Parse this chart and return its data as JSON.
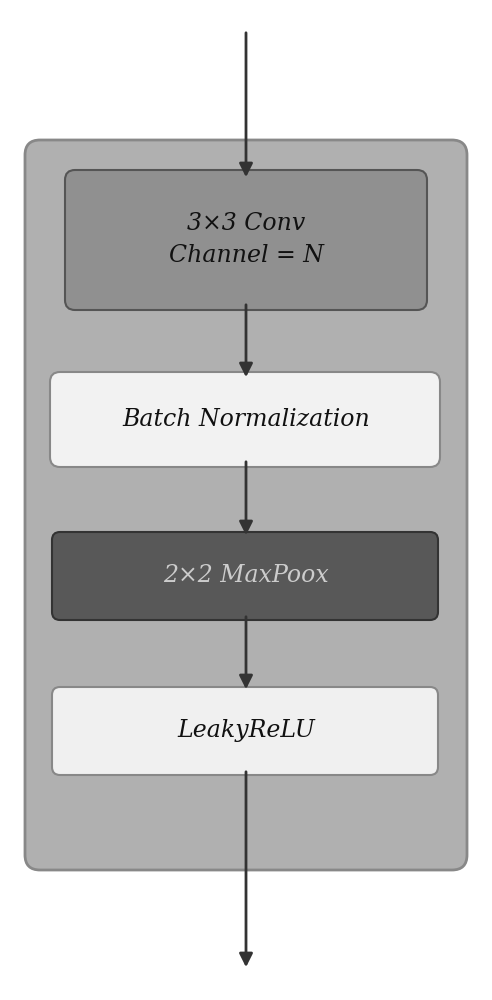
{
  "bg_color": "#ffffff",
  "outer_box_color": "#b0b0b0",
  "outer_box_edge_color": "#888888",
  "conv_box_color": "#909090",
  "conv_box_edge_color": "#555555",
  "bn_box_color": "#f2f2f2",
  "bn_box_edge_color": "#888888",
  "maxpool_box_color": "#585858",
  "maxpool_box_edge_color": "#333333",
  "relu_box_color": "#f0f0f0",
  "relu_box_edge_color": "#888888",
  "arrow_color": "#333333",
  "conv_text": "3×3 Conv\nChannel = N",
  "bn_text": "Batch Normalization",
  "maxpool_text": "2×2 MaxPoox",
  "relu_text": "LeakyReLU",
  "conv_text_color": "#111111",
  "bn_text_color": "#111111",
  "maxpool_text_color": "#cccccc",
  "relu_text_color": "#111111",
  "figsize": [
    4.92,
    10.0
  ],
  "dpi": 100
}
